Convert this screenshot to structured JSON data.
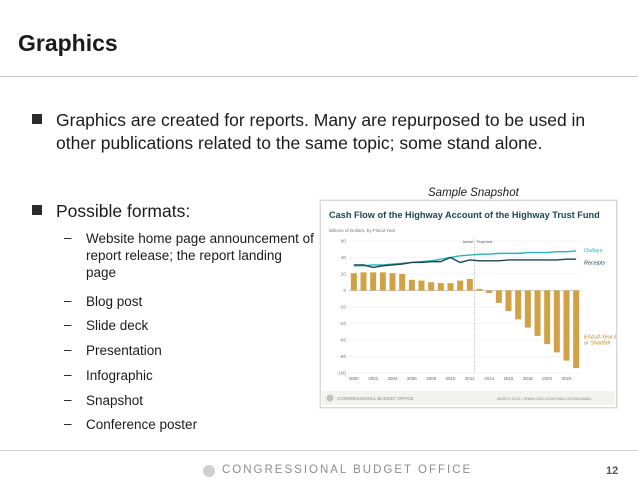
{
  "slide": {
    "title": "Graphics",
    "bullets": [
      "Graphics are created for reports. Many are repurposed to be used in other publications related to the same topic; some stand alone.",
      "Possible formats:"
    ],
    "formats": [
      "Website home page announcement of report release; the report landing page",
      "Blog post",
      "Slide deck",
      "Presentation",
      "Infographic",
      "Snapshot",
      "Conference poster"
    ],
    "snapshot_label": "Sample Snapshot",
    "footer": "CONGRESSIONAL BUDGET OFFICE",
    "page_number": "12"
  },
  "chart_data": {
    "type": "bar",
    "title": "Cash Flow of the Highway Account of the Highway Trust Fund",
    "ylabel": "Billions of Dollars, by Fiscal Year",
    "ylim": [
      -100,
      60
    ],
    "yticks": [
      60,
      40,
      20,
      0,
      -20,
      -40,
      -60,
      -80,
      -100
    ],
    "categories": [
      "2000",
      "2001",
      "2002",
      "2003",
      "2004",
      "2005",
      "2006",
      "2007",
      "2008",
      "2009",
      "2010",
      "2011",
      "2012",
      "2013",
      "2014",
      "2015",
      "2016",
      "2017",
      "2018",
      "2019",
      "2020",
      "2021",
      "2022",
      "2023"
    ],
    "xticks": [
      "2000",
      "2002",
      "2004",
      "2006",
      "2008",
      "2010",
      "2012",
      "2014",
      "2016",
      "2018",
      "2020",
      "2022"
    ],
    "series": [
      {
        "name": "Outlays",
        "values": [
          30,
          30,
          31,
          31,
          32,
          33,
          34,
          35,
          36,
          38,
          40,
          42,
          43,
          44,
          44,
          45,
          45,
          45,
          46,
          46,
          46,
          47,
          47,
          48
        ]
      },
      {
        "name": "Receipts",
        "values": [
          31,
          31,
          28,
          30,
          31,
          32,
          34,
          34,
          35,
          35,
          40,
          34,
          37,
          36,
          36,
          36,
          37,
          37,
          37,
          37,
          37,
          37,
          38,
          38
        ]
      },
      {
        "name": "End-of-Year Balance or Shortfall",
        "values": [
          21,
          22,
          22,
          22,
          21,
          20,
          13,
          12,
          10,
          9,
          9,
          12,
          14,
          2,
          -3,
          -15,
          -25,
          -35,
          -45,
          -55,
          -65,
          -75,
          -85,
          -94
        ]
      }
    ],
    "annotations": [
      "Actual",
      "Projected",
      "Outlays",
      "Receipts",
      "End-of-Year Balance or Shortfall"
    ],
    "source": "CONGRESSIONAL BUDGET OFFICE",
    "source_right": "MARCH 2013 • WWW.CBO.GOV/PUBLICATION/43884",
    "colors": {
      "outlays": "#2ab3b9",
      "receipts": "#1d4650",
      "bars": "#d1a146",
      "title": "#1d4650"
    },
    "grid": true
  }
}
